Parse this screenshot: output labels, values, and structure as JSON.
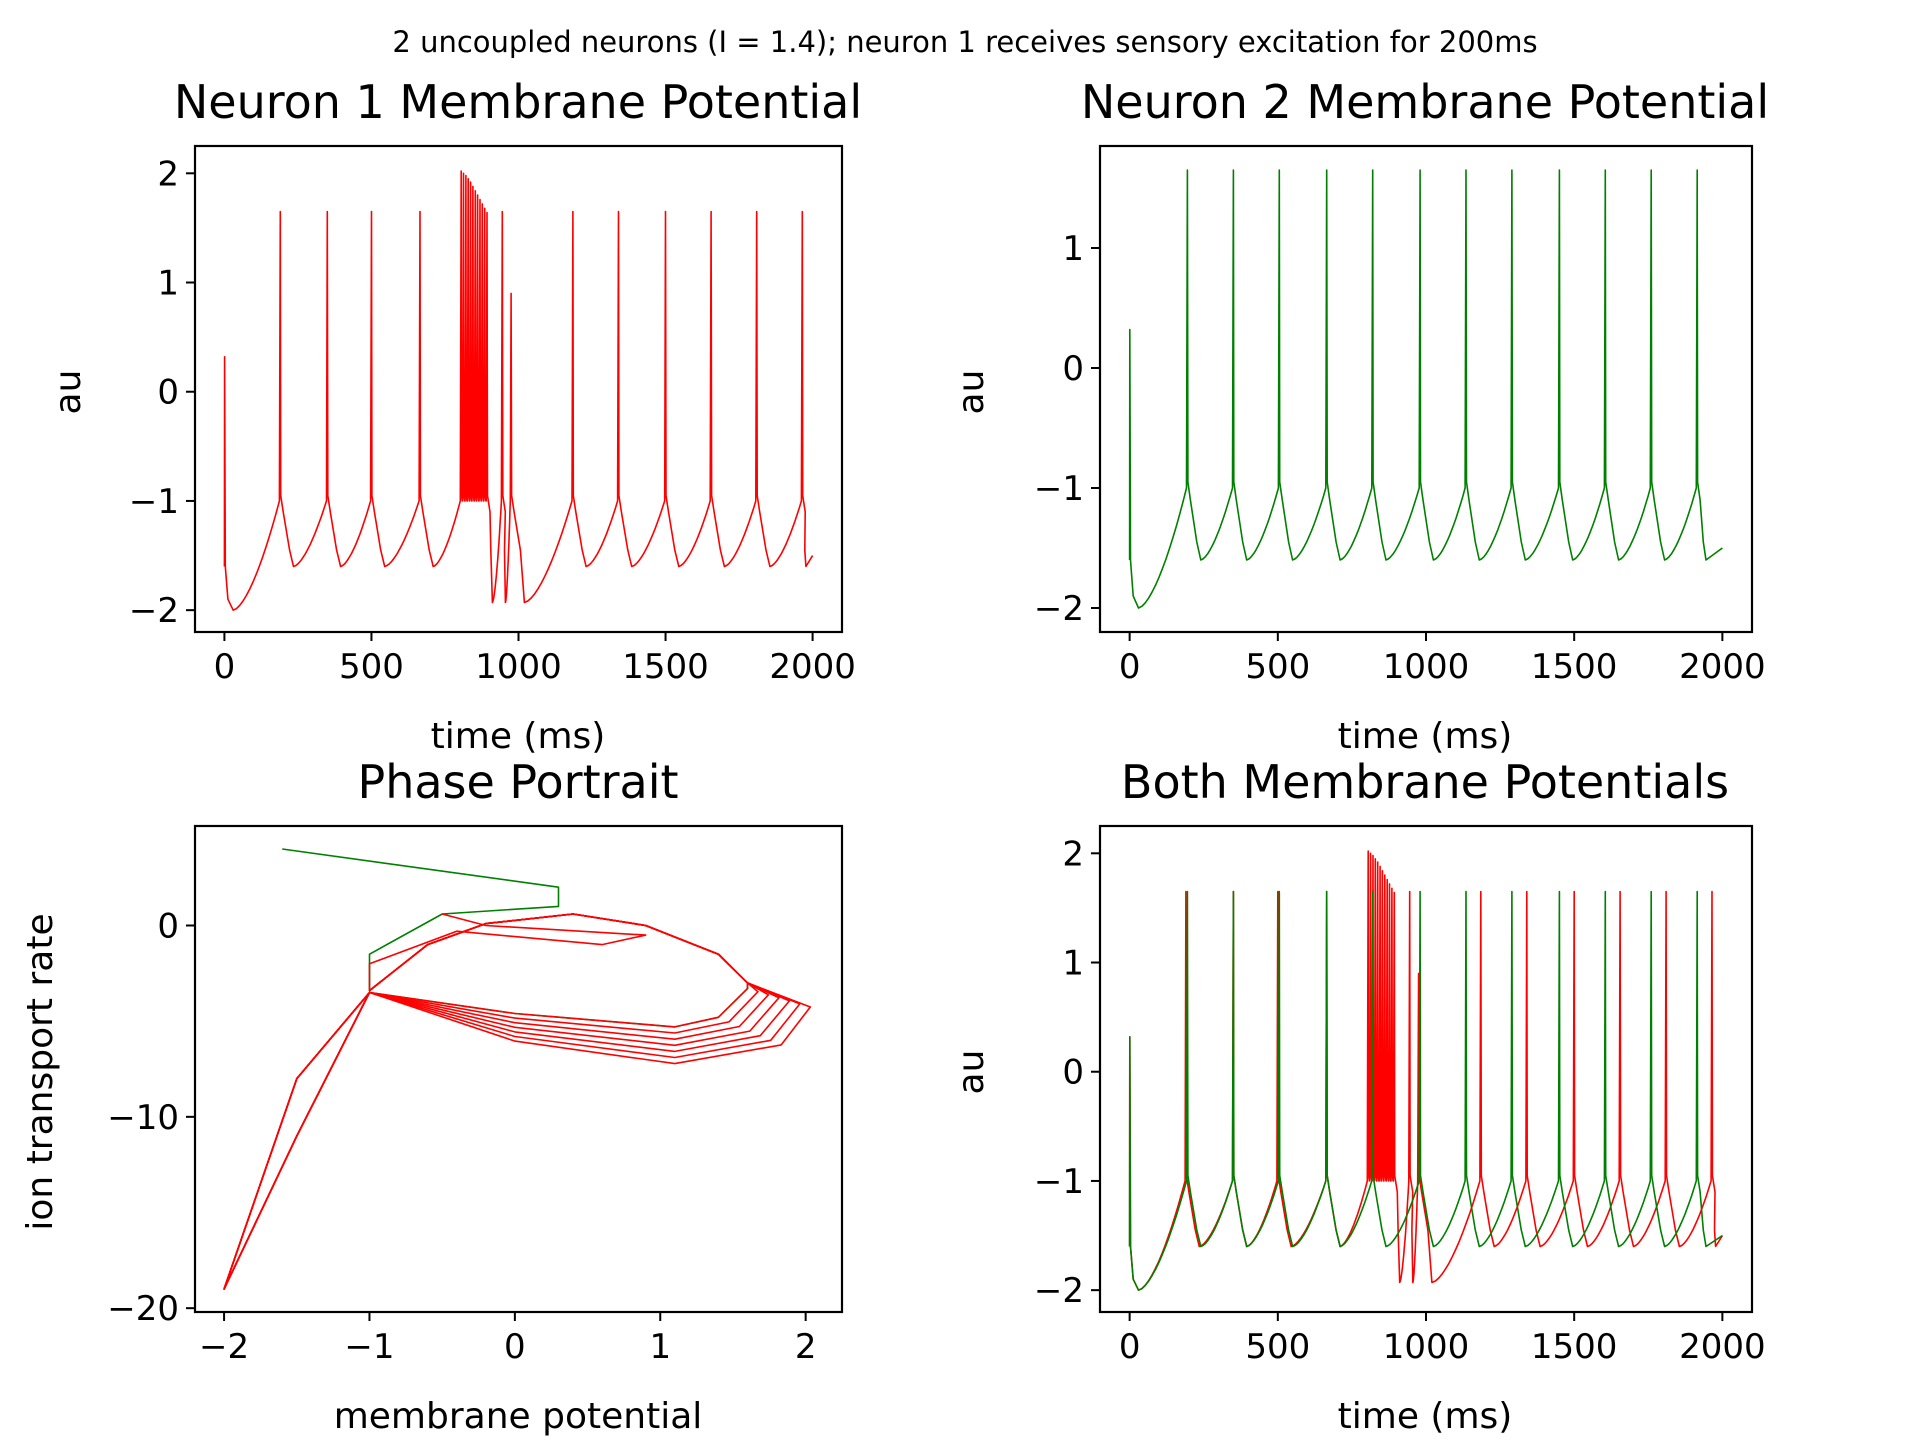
{
  "suptitle": "2 uncoupled neurons (I = 1.4); neuron 1 receives sensory excitation for 200ms",
  "colors": {
    "neuron1": "#ff0000",
    "neuron2": "#008000"
  },
  "chart_data": [
    {
      "id": "neuron1",
      "type": "line",
      "title": "Neuron 1 Membrane Potential",
      "xlabel": "time (ms)",
      "ylabel": "au",
      "xlim": [
        -100,
        2100
      ],
      "ylim": [
        -2.2,
        2.25
      ],
      "xticks": [
        0,
        500,
        1000,
        1500,
        2000
      ],
      "yticks": [
        -2,
        -1,
        0,
        1,
        2
      ],
      "series": [
        {
          "color": "#ff0000",
          "period": 157,
          "offset": 0,
          "spike_times": [
            190,
            350,
            500,
            665,
            805,
            813,
            821,
            829,
            837,
            845,
            853,
            861,
            869,
            877,
            885,
            893,
            945,
            975,
            1185,
            1340,
            1500,
            1655,
            1810,
            1965
          ],
          "spike_peaks": [
            1.65,
            1.65,
            1.65,
            1.65,
            2.02,
            2.0,
            1.98,
            1.95,
            1.92,
            1.88,
            1.84,
            1.8,
            1.76,
            1.72,
            1.68,
            1.64,
            1.65,
            0.9,
            1.65,
            1.65,
            1.65,
            1.65,
            1.65,
            1.65
          ]
        }
      ]
    },
    {
      "id": "neuron2",
      "type": "line",
      "title": "Neuron 2 Membrane Potential",
      "xlabel": "time (ms)",
      "ylabel": "au",
      "xlim": [
        -100,
        2100
      ],
      "ylim": [
        -2.2,
        1.85
      ],
      "xticks": [
        0,
        500,
        1000,
        1500,
        2000
      ],
      "yticks": [
        -2,
        -1,
        0,
        1
      ],
      "series": [
        {
          "color": "#008000",
          "spike_times": [
            195,
            350,
            505,
            665,
            820,
            980,
            1135,
            1290,
            1450,
            1605,
            1760,
            1915
          ],
          "spike_peaks": [
            1.65,
            1.65,
            1.65,
            1.65,
            1.65,
            1.65,
            1.65,
            1.65,
            1.65,
            1.65,
            1.65,
            1.65
          ]
        }
      ]
    },
    {
      "id": "phase",
      "type": "line",
      "title": "Phase Portrait",
      "xlabel": "membrane potential",
      "ylabel": "ion transport rate",
      "xlim": [
        -2.2,
        2.25
      ],
      "ylim": [
        -20.2,
        5.2
      ],
      "xticks": [
        -2,
        -1,
        0,
        1,
        2
      ],
      "yticks": [
        -20,
        -10,
        0
      ],
      "series": [
        {
          "color": "#008000",
          "kind": "phase",
          "orbit_scale": [
            1.0
          ]
        },
        {
          "color": "#ff0000",
          "kind": "phase",
          "orbit_scale": [
            1.0,
            1.04,
            1.08,
            1.12,
            1.16,
            1.2,
            1.24
          ]
        }
      ]
    },
    {
      "id": "both",
      "type": "line",
      "title": "Both Membrane Potentials",
      "xlabel": "time (ms)",
      "ylabel": "au",
      "xlim": [
        -100,
        2100
      ],
      "ylim": [
        -2.2,
        2.25
      ],
      "xticks": [
        0,
        500,
        1000,
        1500,
        2000
      ],
      "yticks": [
        -2,
        -1,
        0,
        1,
        2
      ],
      "series": [
        {
          "color": "#ff0000",
          "ref": "neuron1"
        },
        {
          "color": "#008000",
          "ref": "neuron2"
        }
      ]
    }
  ]
}
